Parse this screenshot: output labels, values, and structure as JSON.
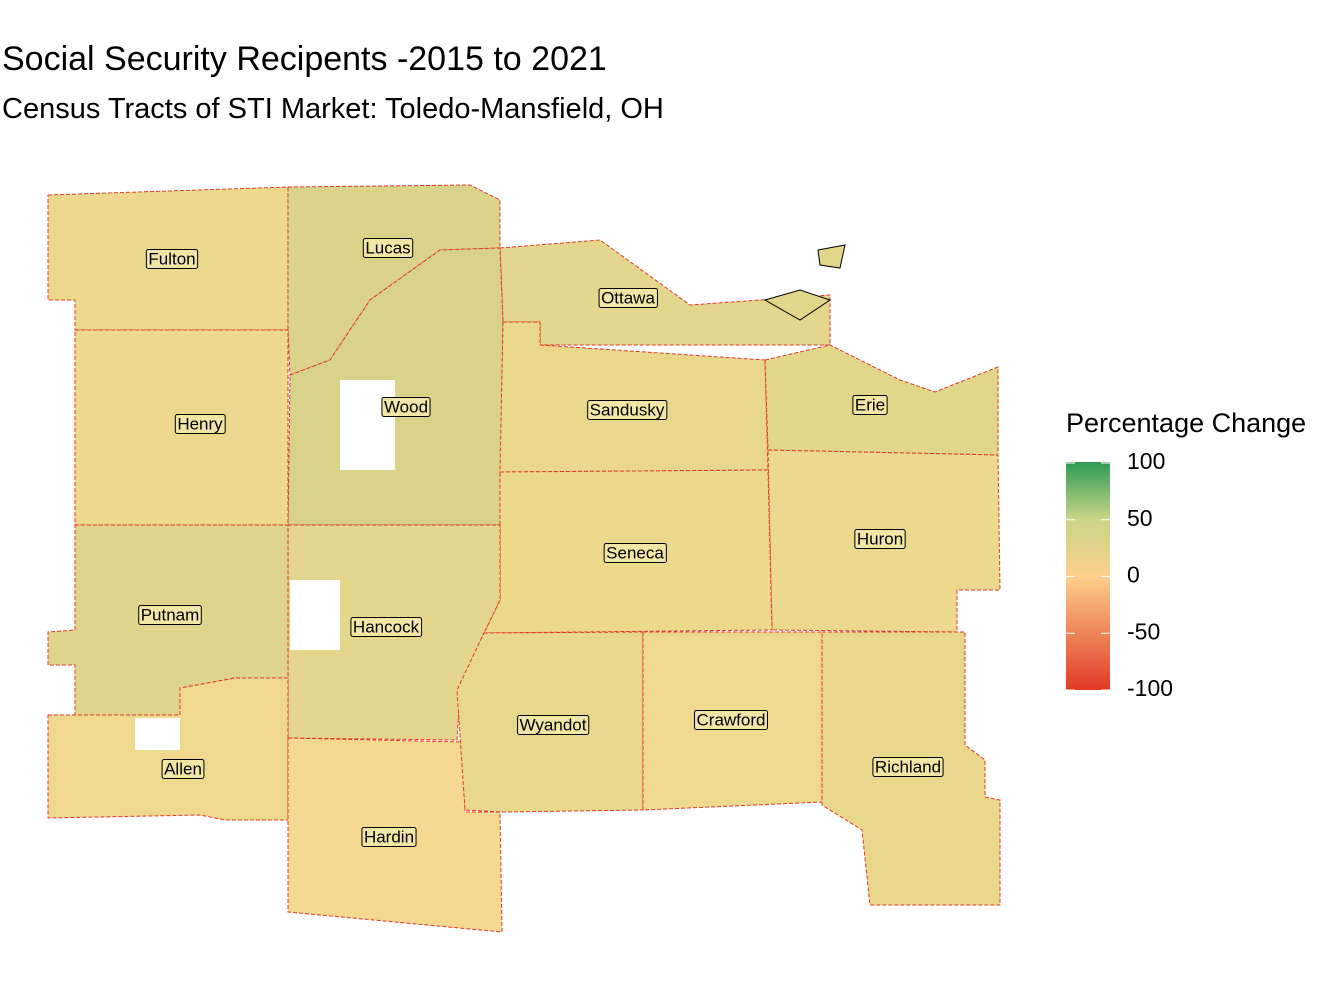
{
  "title": "Social Security Recipents -2015 to 2021",
  "subtitle": "Census Tracts of STI Market: Toledo-Mansfield, OH",
  "legend": {
    "title": "Percentage Change",
    "limits": [
      -100,
      100
    ],
    "ticks": [
      100,
      50,
      0,
      -50,
      -100
    ],
    "colors": [
      "#e03a25",
      "#fdd08c",
      "#c9d587",
      "#2e9a55"
    ]
  },
  "counties": [
    "Fulton",
    "Lucas",
    "Ottawa",
    "Henry",
    "Wood",
    "Sandusky",
    "Erie",
    "Seneca",
    "Huron",
    "Putnam",
    "Hancock",
    "Allen",
    "Wyandot",
    "Crawford",
    "Richland",
    "Hardin"
  ]
}
